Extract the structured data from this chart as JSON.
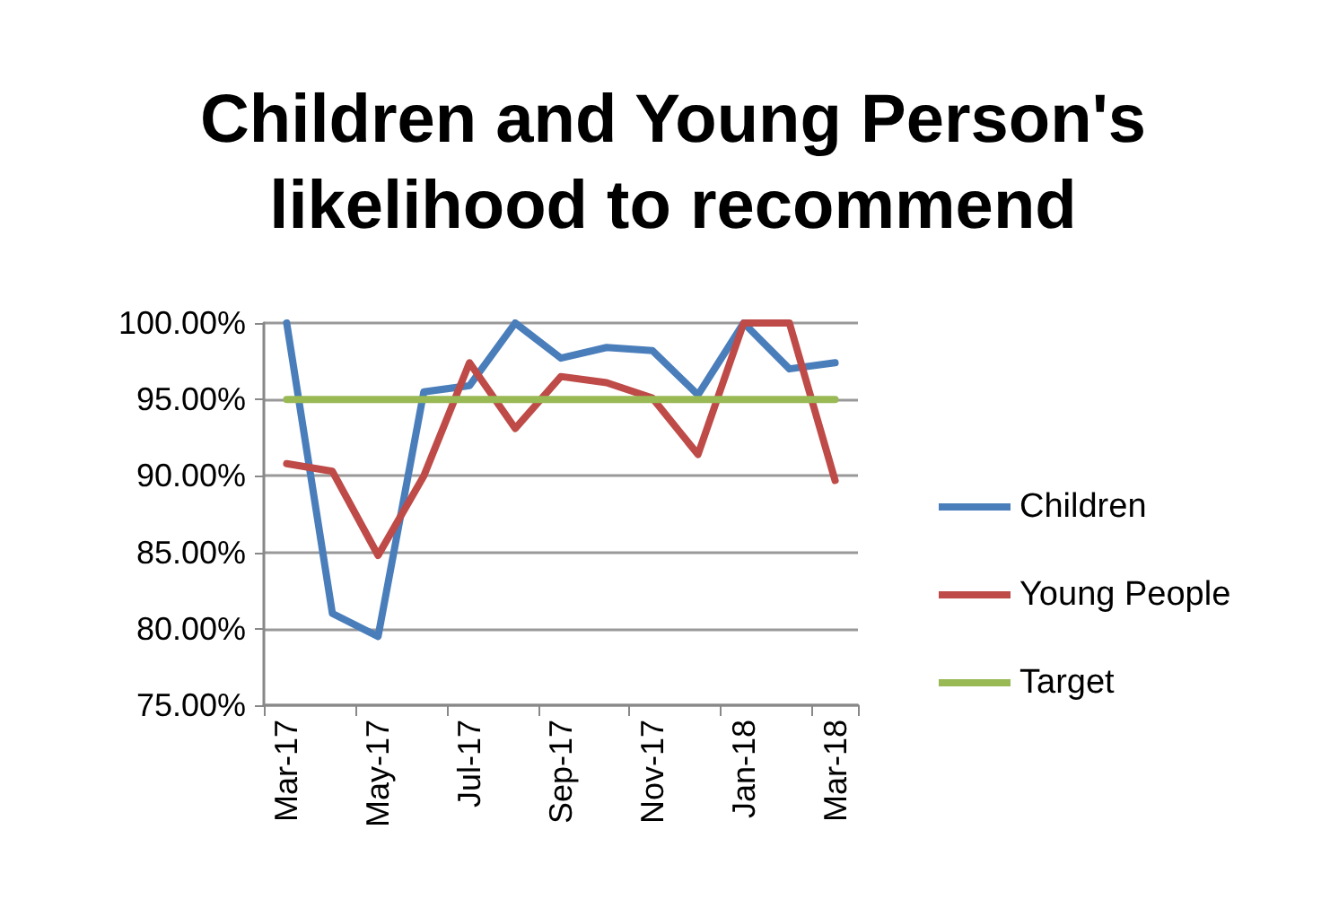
{
  "chart_data": {
    "type": "line",
    "title": "Children and Young Person's\nlikelihood to recommend",
    "categories": [
      "Mar-17",
      null,
      "May-17",
      null,
      "Jul-17",
      null,
      "Sep-17",
      null,
      "Nov-17",
      null,
      "Jan-18",
      null,
      "Mar-18"
    ],
    "series": [
      {
        "name": "Children",
        "color": "#4a7ebb",
        "values": [
          100,
          81.0,
          79.5,
          95.5,
          95.9,
          100,
          97.7,
          98.4,
          98.2,
          95.3,
          100,
          97.0,
          97.4
        ]
      },
      {
        "name": "Young People",
        "color": "#be4b48",
        "values": [
          90.8,
          90.3,
          84.8,
          90.0,
          97.4,
          93.1,
          96.5,
          96.1,
          95.1,
          91.4,
          100,
          100,
          89.7
        ]
      },
      {
        "name": "Target",
        "color": "#98b954",
        "values": [
          95,
          95,
          95,
          95,
          95,
          95,
          95,
          95,
          95,
          95,
          95,
          95,
          95
        ]
      }
    ],
    "ylim": [
      75,
      100
    ],
    "yticks": [
      {
        "value": 75,
        "label": "75.00%"
      },
      {
        "value": 80,
        "label": "80.00%"
      },
      {
        "value": 85,
        "label": "85.00%"
      },
      {
        "value": 90,
        "label": "90.00%"
      },
      {
        "value": 95,
        "label": "95.00%"
      },
      {
        "value": 100,
        "label": "100.00%"
      }
    ],
    "grid": "y",
    "legend": "right",
    "marker": "none",
    "line_style": "solid"
  }
}
